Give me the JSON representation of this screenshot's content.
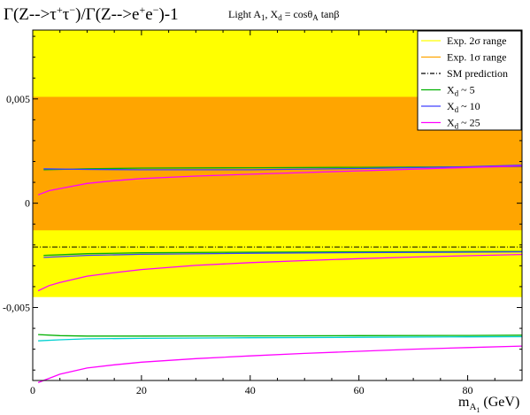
{
  "chart_data": {
    "type": "line",
    "title": "Γ(Z-->τ⁺τ⁻)/Γ(Z-->e⁺e⁻)-1",
    "title_parts": {
      "a": "Γ(Z-->τ",
      "b": "+",
      "c": "τ",
      "d": "−",
      "e": ")/Γ(Z-->e",
      "f": "+",
      "g": "e",
      "h": "−",
      "i": ")-1"
    },
    "subtitle": "Light A1, Xd = cosθA tanβ",
    "subtitle_parts": {
      "a": "Light A",
      "b": "1",
      "c": ", X",
      "d": "d",
      "e": " = cosθ",
      "f": "A",
      "g": " tanβ"
    },
    "xlabel": "m_A1 (GeV)",
    "xlabel_parts": {
      "a": "m",
      "b": "A",
      "c": "1",
      "d": " (GeV)"
    },
    "ylabel": "",
    "xlim": [
      0,
      90
    ],
    "ylim": [
      -0.0085,
      0.0083
    ],
    "x_ticks": [
      {
        "value": 0,
        "label": "0"
      },
      {
        "value": 20,
        "label": "20"
      },
      {
        "value": 40,
        "label": "40"
      },
      {
        "value": 60,
        "label": "60"
      },
      {
        "value": 80,
        "label": "80"
      }
    ],
    "y_ticks": [
      {
        "value": 0.005,
        "label": "0,005"
      },
      {
        "value": 0,
        "label": "0"
      },
      {
        "value": -0.005,
        "label": "-0,005"
      }
    ],
    "bands": [
      {
        "name": "Exp. 2σ range",
        "color": "#ffff00",
        "ymin": -0.0045,
        "ymax": 0.0083
      },
      {
        "name": "Exp. 1σ range",
        "color": "#ffa500",
        "ymin": -0.0013,
        "ymax": 0.0051
      }
    ],
    "sm_prediction": {
      "name": "SM prediction",
      "value": -0.0021,
      "color": "#000000"
    },
    "series": [
      {
        "name": "Xd ~ 5",
        "color": "#00b000",
        "x": [
          2,
          10,
          20,
          40,
          60,
          80,
          90
        ],
        "y": [
          0.0016,
          0.00165,
          0.00168,
          0.0017,
          0.00172,
          0.00174,
          0.00175
        ]
      },
      {
        "name": "Xd ~ 5",
        "color": "#00b000",
        "x": [
          2,
          10,
          20,
          40,
          60,
          80,
          90
        ],
        "y": [
          -0.0025,
          -0.00242,
          -0.00238,
          -0.00235,
          -0.00233,
          -0.00232,
          -0.00231
        ]
      },
      {
        "name": "Xd ~ 10",
        "color": "#4040ff",
        "x": [
          2,
          10,
          20,
          40,
          60,
          80,
          90
        ],
        "y": [
          0.00165,
          0.00162,
          0.0016,
          0.0016,
          0.00166,
          0.00175,
          0.00182
        ]
      },
      {
        "name": "Xd ~ 10",
        "color": "#4040ff",
        "x": [
          2,
          10,
          20,
          40,
          60,
          80,
          90
        ],
        "y": [
          -0.0026,
          -0.0025,
          -0.00245,
          -0.0024,
          -0.00237,
          -0.00235,
          -0.00233
        ]
      },
      {
        "name": "Xd ~ 25",
        "color": "#ff00ff",
        "x": [
          1,
          3,
          5,
          10,
          15,
          20,
          30,
          40,
          50,
          60,
          70,
          80,
          90
        ],
        "y": [
          0.0004,
          0.0006,
          0.0007,
          0.00095,
          0.00108,
          0.00118,
          0.0013,
          0.00139,
          0.00147,
          0.00155,
          0.00163,
          0.00171,
          0.00178
        ]
      },
      {
        "name": "Xd ~ 25",
        "color": "#ff00ff",
        "x": [
          1,
          3,
          5,
          10,
          15,
          20,
          30,
          40,
          50,
          60,
          70,
          80,
          90
        ],
        "y": [
          -0.0042,
          -0.00395,
          -0.0038,
          -0.0035,
          -0.00333,
          -0.00318,
          -0.00298,
          -0.00285,
          -0.00275,
          -0.00266,
          -0.00258,
          -0.00252,
          -0.00246
        ]
      },
      {
        "name": "cyan (lower)",
        "color": "#00d0d0",
        "x": [
          1,
          5,
          10,
          20,
          40,
          60,
          80,
          90
        ],
        "y": [
          -0.0066,
          -0.00655,
          -0.0065,
          -0.00648,
          -0.00645,
          -0.00643,
          -0.00641,
          -0.0064
        ]
      },
      {
        "name": "green (lower)",
        "color": "#00b000",
        "x": [
          1,
          5,
          10,
          20,
          40,
          60,
          80,
          90
        ],
        "y": [
          -0.0063,
          -0.00635,
          -0.00637,
          -0.00637,
          -0.00636,
          -0.00635,
          -0.00634,
          -0.00633
        ]
      },
      {
        "name": "magenta (lower)",
        "color": "#ff00ff",
        "x": [
          1,
          3,
          5,
          10,
          15,
          20,
          30,
          40,
          50,
          60,
          70,
          80,
          90
        ],
        "y": [
          -0.0086,
          -0.0084,
          -0.0082,
          -0.0079,
          -0.00775,
          -0.00762,
          -0.00745,
          -0.00732,
          -0.0072,
          -0.0071,
          -0.007,
          -0.00692,
          -0.00685
        ]
      }
    ],
    "legend": {
      "placement": "top-right",
      "entries": [
        {
          "label": "Exp. 2σ range",
          "color": "#ffff00",
          "style": "solid"
        },
        {
          "label": "Exp. 1σ range",
          "color": "#ffa500",
          "style": "solid"
        },
        {
          "label": "SM prediction",
          "color": "#000000",
          "style": "dashdot"
        },
        {
          "label": "Xd ~ 5",
          "color": "#00b000",
          "style": "solid",
          "base": "X",
          "sub": "d",
          "rest": " ~ 5"
        },
        {
          "label": "Xd ~ 10",
          "color": "#4040ff",
          "style": "solid",
          "base": "X",
          "sub": "d",
          "rest": " ~ 10"
        },
        {
          "label": "Xd ~ 25",
          "color": "#ff00ff",
          "style": "solid",
          "base": "X",
          "sub": "d",
          "rest": " ~ 25"
        }
      ]
    },
    "grid": false
  }
}
